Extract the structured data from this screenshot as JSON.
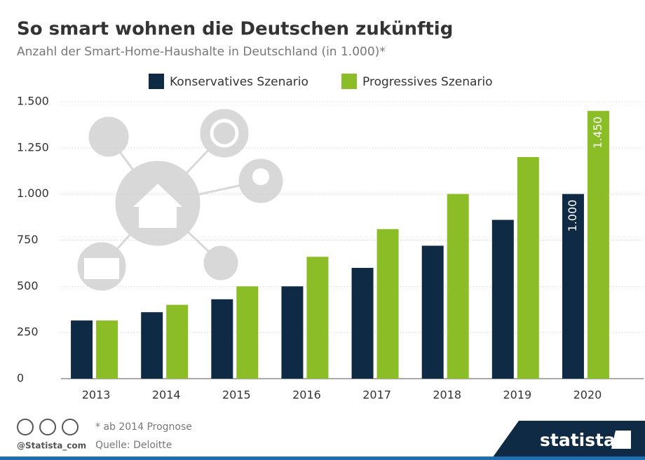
{
  "chart_data": {
    "type": "bar",
    "title": "So smart wohnen die Deutschen zukünftig",
    "subtitle": "Anzahl der Smart-Home-Haushalte in Deutschland (in 1.000)*",
    "categories": [
      "2013",
      "2014",
      "2015",
      "2016",
      "2017",
      "2018",
      "2019",
      "2020"
    ],
    "series": [
      {
        "name": "Konservatives Szenario",
        "color": "#0f2a44",
        "values": [
          315,
          360,
          430,
          500,
          600,
          720,
          860,
          1000
        ],
        "value_labels": [
          null,
          null,
          null,
          null,
          null,
          null,
          null,
          "1.000"
        ]
      },
      {
        "name": "Progressives Szenario",
        "color": "#8bbd27",
        "values": [
          315,
          400,
          500,
          660,
          810,
          1000,
          1200,
          1450
        ],
        "value_labels": [
          null,
          null,
          null,
          null,
          null,
          null,
          null,
          "1.450"
        ]
      }
    ],
    "ylim": [
      0,
      1500
    ],
    "yticks": [
      0,
      250,
      500,
      750,
      {
        "value": 1000,
        "label": "1.000"
      },
      {
        "value": 1250,
        "label": "1.250"
      },
      {
        "value": 1500,
        "label": "1.500"
      }
    ],
    "grid": true,
    "legend": "top",
    "footnote": "* ab 2014 Prognose",
    "source": "Quelle: Deloitte",
    "handle": "@Statista_com",
    "brand": "statista"
  }
}
